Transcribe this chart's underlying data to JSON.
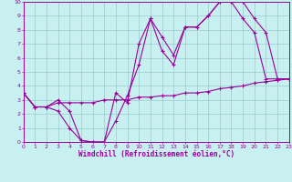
{
  "xlabel": "Windchill (Refroidissement éolien,°C)",
  "bg_color": "#c8f0f0",
  "line_color": "#990099",
  "grid_color": "#99cccc",
  "xlim": [
    0,
    23
  ],
  "ylim": [
    0,
    10
  ],
  "xticks": [
    0,
    1,
    2,
    3,
    4,
    5,
    6,
    7,
    8,
    9,
    10,
    11,
    12,
    13,
    14,
    15,
    16,
    17,
    18,
    19,
    20,
    21,
    22,
    23
  ],
  "yticks": [
    0,
    1,
    2,
    3,
    4,
    5,
    6,
    7,
    8,
    9,
    10
  ],
  "line1_x": [
    0,
    1,
    2,
    3,
    4,
    5,
    6,
    7,
    8,
    9,
    10,
    11,
    12,
    13,
    14,
    15,
    16,
    17,
    18,
    19,
    20,
    21,
    22,
    23
  ],
  "line1_y": [
    3.5,
    2.5,
    2.5,
    2.2,
    1.0,
    0.1,
    0.0,
    0.0,
    1.5,
    3.3,
    5.5,
    8.8,
    6.5,
    5.5,
    8.2,
    8.2,
    9.0,
    10.0,
    10.0,
    8.8,
    7.8,
    4.5,
    4.5,
    4.5
  ],
  "line2_x": [
    0,
    1,
    2,
    3,
    4,
    5,
    6,
    7,
    8,
    9,
    10,
    11,
    12,
    13,
    14,
    15,
    16,
    17,
    18,
    19,
    20,
    21,
    22,
    23
  ],
  "line2_y": [
    3.5,
    2.5,
    2.5,
    3.0,
    2.2,
    0.1,
    0.0,
    0.0,
    3.5,
    2.8,
    7.0,
    8.8,
    7.5,
    6.2,
    8.2,
    8.2,
    9.0,
    10.0,
    10.0,
    10.0,
    8.8,
    7.8,
    4.5,
    4.5
  ],
  "line3_x": [
    0,
    1,
    2,
    3,
    4,
    5,
    6,
    7,
    8,
    9,
    10,
    11,
    12,
    13,
    14,
    15,
    16,
    17,
    18,
    19,
    20,
    21,
    22,
    23
  ],
  "line3_y": [
    3.5,
    2.5,
    2.5,
    2.8,
    2.8,
    2.8,
    2.8,
    3.0,
    3.0,
    3.0,
    3.2,
    3.2,
    3.3,
    3.3,
    3.5,
    3.5,
    3.6,
    3.8,
    3.9,
    4.0,
    4.2,
    4.3,
    4.4,
    4.5
  ]
}
